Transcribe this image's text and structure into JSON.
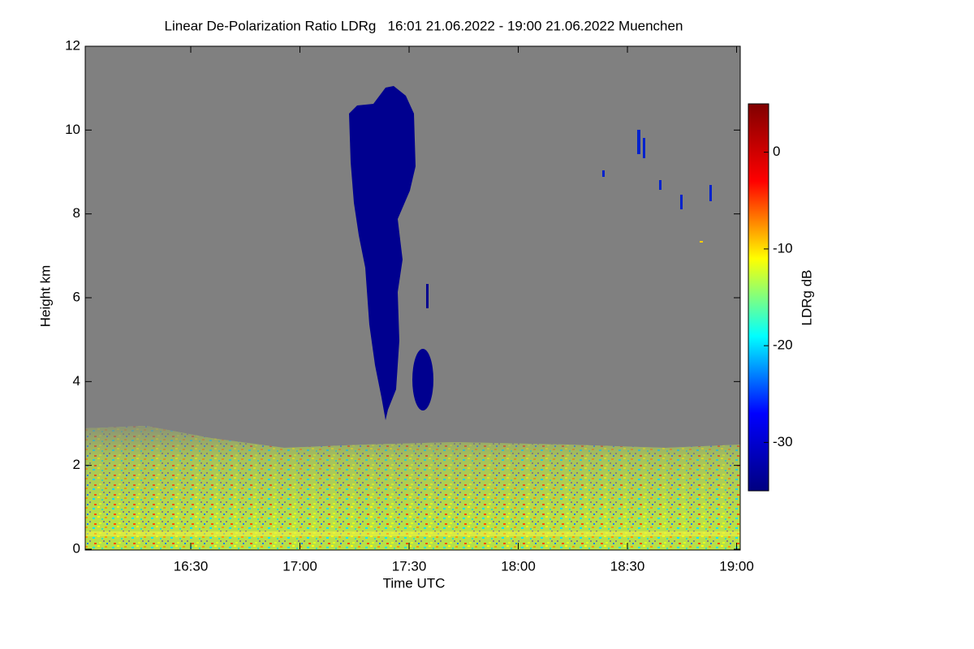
{
  "chart_data": {
    "type": "heatmap",
    "title": "Linear De-Polarization Ratio LDRg   16:01 21.06.2022 - 19:00 21.06.2022 Muenchen",
    "x_label": "Time UTC",
    "y_label": "Height km",
    "xlim": [
      961,
      1141
    ],
    "xticks": [
      {
        "value": 990,
        "label": "16:30"
      },
      {
        "value": 1020,
        "label": "17:00"
      },
      {
        "value": 1050,
        "label": "17:30"
      },
      {
        "value": 1080,
        "label": "18:00"
      },
      {
        "value": 1110,
        "label": "18:30"
      },
      {
        "value": 1140,
        "label": "19:00"
      }
    ],
    "ylim": [
      0,
      12
    ],
    "yticks": [
      0,
      2,
      4,
      6,
      8,
      10,
      12
    ],
    "colorbar": {
      "label": "LDRg dB",
      "lim": [
        -35,
        5
      ],
      "ticks": [
        0,
        -10,
        -20,
        -30
      ],
      "colormap": "jet"
    }
  }
}
